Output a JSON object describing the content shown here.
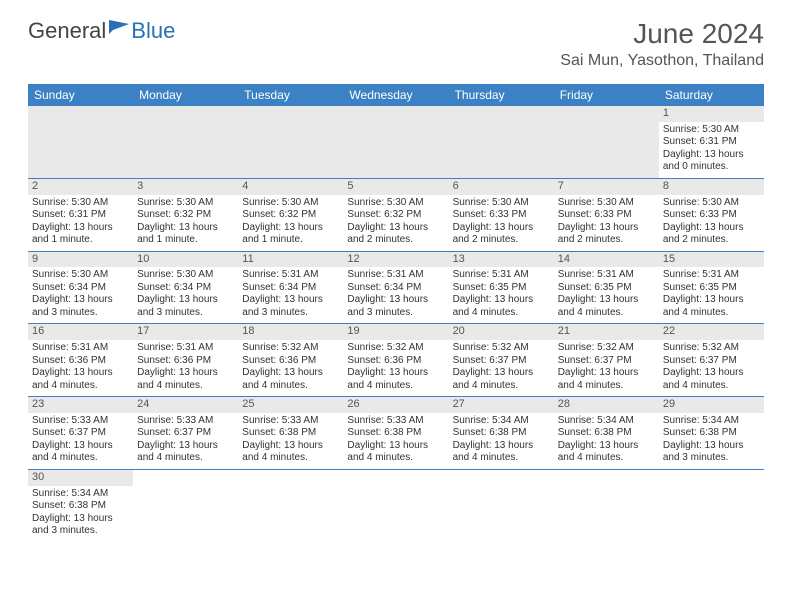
{
  "logo": {
    "text1": "General",
    "text2": "Blue"
  },
  "header": {
    "month_title": "June 2024",
    "location": "Sai Mun, Yasothon, Thailand"
  },
  "colors": {
    "header_bg": "#3b81c3",
    "header_fg": "#ffffff",
    "row_divider": "#3b81c3",
    "daynum_bg": "#e9e9e9",
    "empty_cell_bg": "#e9e9e9",
    "text": "#333333",
    "muted_text": "#555555"
  },
  "days_of_week": [
    "Sunday",
    "Monday",
    "Tuesday",
    "Wednesday",
    "Thursday",
    "Friday",
    "Saturday"
  ],
  "weeks": [
    [
      null,
      null,
      null,
      null,
      null,
      null,
      {
        "n": "1",
        "sunrise": "Sunrise: 5:30 AM",
        "sunset": "Sunset: 6:31 PM",
        "day1": "Daylight: 13 hours",
        "day2": "and 0 minutes."
      }
    ],
    [
      {
        "n": "2",
        "sunrise": "Sunrise: 5:30 AM",
        "sunset": "Sunset: 6:31 PM",
        "day1": "Daylight: 13 hours",
        "day2": "and 1 minute."
      },
      {
        "n": "3",
        "sunrise": "Sunrise: 5:30 AM",
        "sunset": "Sunset: 6:32 PM",
        "day1": "Daylight: 13 hours",
        "day2": "and 1 minute."
      },
      {
        "n": "4",
        "sunrise": "Sunrise: 5:30 AM",
        "sunset": "Sunset: 6:32 PM",
        "day1": "Daylight: 13 hours",
        "day2": "and 1 minute."
      },
      {
        "n": "5",
        "sunrise": "Sunrise: 5:30 AM",
        "sunset": "Sunset: 6:32 PM",
        "day1": "Daylight: 13 hours",
        "day2": "and 2 minutes."
      },
      {
        "n": "6",
        "sunrise": "Sunrise: 5:30 AM",
        "sunset": "Sunset: 6:33 PM",
        "day1": "Daylight: 13 hours",
        "day2": "and 2 minutes."
      },
      {
        "n": "7",
        "sunrise": "Sunrise: 5:30 AM",
        "sunset": "Sunset: 6:33 PM",
        "day1": "Daylight: 13 hours",
        "day2": "and 2 minutes."
      },
      {
        "n": "8",
        "sunrise": "Sunrise: 5:30 AM",
        "sunset": "Sunset: 6:33 PM",
        "day1": "Daylight: 13 hours",
        "day2": "and 2 minutes."
      }
    ],
    [
      {
        "n": "9",
        "sunrise": "Sunrise: 5:30 AM",
        "sunset": "Sunset: 6:34 PM",
        "day1": "Daylight: 13 hours",
        "day2": "and 3 minutes."
      },
      {
        "n": "10",
        "sunrise": "Sunrise: 5:30 AM",
        "sunset": "Sunset: 6:34 PM",
        "day1": "Daylight: 13 hours",
        "day2": "and 3 minutes."
      },
      {
        "n": "11",
        "sunrise": "Sunrise: 5:31 AM",
        "sunset": "Sunset: 6:34 PM",
        "day1": "Daylight: 13 hours",
        "day2": "and 3 minutes."
      },
      {
        "n": "12",
        "sunrise": "Sunrise: 5:31 AM",
        "sunset": "Sunset: 6:34 PM",
        "day1": "Daylight: 13 hours",
        "day2": "and 3 minutes."
      },
      {
        "n": "13",
        "sunrise": "Sunrise: 5:31 AM",
        "sunset": "Sunset: 6:35 PM",
        "day1": "Daylight: 13 hours",
        "day2": "and 4 minutes."
      },
      {
        "n": "14",
        "sunrise": "Sunrise: 5:31 AM",
        "sunset": "Sunset: 6:35 PM",
        "day1": "Daylight: 13 hours",
        "day2": "and 4 minutes."
      },
      {
        "n": "15",
        "sunrise": "Sunrise: 5:31 AM",
        "sunset": "Sunset: 6:35 PM",
        "day1": "Daylight: 13 hours",
        "day2": "and 4 minutes."
      }
    ],
    [
      {
        "n": "16",
        "sunrise": "Sunrise: 5:31 AM",
        "sunset": "Sunset: 6:36 PM",
        "day1": "Daylight: 13 hours",
        "day2": "and 4 minutes."
      },
      {
        "n": "17",
        "sunrise": "Sunrise: 5:31 AM",
        "sunset": "Sunset: 6:36 PM",
        "day1": "Daylight: 13 hours",
        "day2": "and 4 minutes."
      },
      {
        "n": "18",
        "sunrise": "Sunrise: 5:32 AM",
        "sunset": "Sunset: 6:36 PM",
        "day1": "Daylight: 13 hours",
        "day2": "and 4 minutes."
      },
      {
        "n": "19",
        "sunrise": "Sunrise: 5:32 AM",
        "sunset": "Sunset: 6:36 PM",
        "day1": "Daylight: 13 hours",
        "day2": "and 4 minutes."
      },
      {
        "n": "20",
        "sunrise": "Sunrise: 5:32 AM",
        "sunset": "Sunset: 6:37 PM",
        "day1": "Daylight: 13 hours",
        "day2": "and 4 minutes."
      },
      {
        "n": "21",
        "sunrise": "Sunrise: 5:32 AM",
        "sunset": "Sunset: 6:37 PM",
        "day1": "Daylight: 13 hours",
        "day2": "and 4 minutes."
      },
      {
        "n": "22",
        "sunrise": "Sunrise: 5:32 AM",
        "sunset": "Sunset: 6:37 PM",
        "day1": "Daylight: 13 hours",
        "day2": "and 4 minutes."
      }
    ],
    [
      {
        "n": "23",
        "sunrise": "Sunrise: 5:33 AM",
        "sunset": "Sunset: 6:37 PM",
        "day1": "Daylight: 13 hours",
        "day2": "and 4 minutes."
      },
      {
        "n": "24",
        "sunrise": "Sunrise: 5:33 AM",
        "sunset": "Sunset: 6:37 PM",
        "day1": "Daylight: 13 hours",
        "day2": "and 4 minutes."
      },
      {
        "n": "25",
        "sunrise": "Sunrise: 5:33 AM",
        "sunset": "Sunset: 6:38 PM",
        "day1": "Daylight: 13 hours",
        "day2": "and 4 minutes."
      },
      {
        "n": "26",
        "sunrise": "Sunrise: 5:33 AM",
        "sunset": "Sunset: 6:38 PM",
        "day1": "Daylight: 13 hours",
        "day2": "and 4 minutes."
      },
      {
        "n": "27",
        "sunrise": "Sunrise: 5:34 AM",
        "sunset": "Sunset: 6:38 PM",
        "day1": "Daylight: 13 hours",
        "day2": "and 4 minutes."
      },
      {
        "n": "28",
        "sunrise": "Sunrise: 5:34 AM",
        "sunset": "Sunset: 6:38 PM",
        "day1": "Daylight: 13 hours",
        "day2": "and 4 minutes."
      },
      {
        "n": "29",
        "sunrise": "Sunrise: 5:34 AM",
        "sunset": "Sunset: 6:38 PM",
        "day1": "Daylight: 13 hours",
        "day2": "and 3 minutes."
      }
    ],
    [
      {
        "n": "30",
        "sunrise": "Sunrise: 5:34 AM",
        "sunset": "Sunset: 6:38 PM",
        "day1": "Daylight: 13 hours",
        "day2": "and 3 minutes."
      },
      null,
      null,
      null,
      null,
      null,
      null
    ]
  ]
}
